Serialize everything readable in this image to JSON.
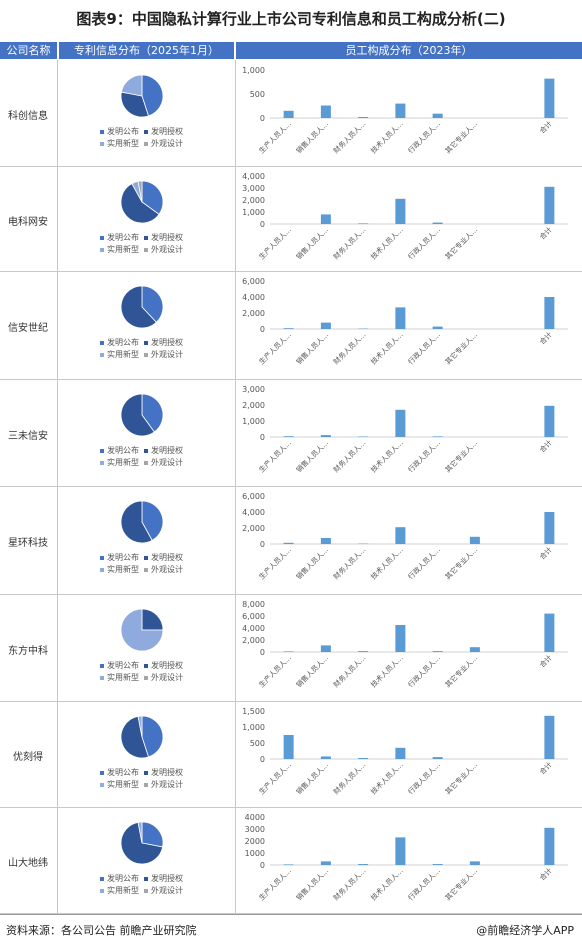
{
  "title": "图表9：中国隐私计算行业上市公司专利信息和员工构成分析(二)",
  "headers": {
    "company": "公司名称",
    "patent": "专利信息分布（2025年1月）",
    "staff": "员工构成分布（2023年）"
  },
  "footer": {
    "source": "资料来源：各公司公告 前瞻产业研究院",
    "brand": "@前瞻经济学人APP"
  },
  "colors": {
    "header": "#4472c4",
    "bar": "#5b9bd5",
    "pie_invention_pub": "#4472c4",
    "pie_invention_grant": "#2f5597",
    "pie_utility": "#8faadc",
    "pie_design": "#a5a5a5"
  },
  "chart_data": [
    {
      "type": "pie",
      "company": "科创信息",
      "categories": [
        "发明公布",
        "发明授权",
        "实用新型",
        "外观设计"
      ],
      "values": [
        45,
        33,
        22,
        0
      ]
    },
    {
      "type": "bar",
      "company": "科创信息",
      "categories": [
        "生产人员人…",
        "销售人员人…",
        "财务人员人…",
        "技术人员人…",
        "行政人员人…",
        "其它专业人…",
        "",
        "合计"
      ],
      "values": [
        150,
        260,
        20,
        300,
        90,
        0,
        0,
        820
      ],
      "yticks": [
        "1,000",
        "500",
        "0"
      ],
      "ylim": [
        0,
        1000
      ]
    },
    {
      "type": "pie",
      "company": "电科网安",
      "categories": [
        "发明公布",
        "发明授权",
        "实用新型",
        "外观设计"
      ],
      "values": [
        35,
        57,
        5,
        3
      ]
    },
    {
      "type": "bar",
      "company": "电科网安",
      "categories": [
        "生产人员人…",
        "销售人员人…",
        "财务人员人…",
        "技术人员人…",
        "行政人员人…",
        "其它专业人…",
        "",
        "合计"
      ],
      "values": [
        0,
        800,
        50,
        2100,
        120,
        0,
        0,
        3100
      ],
      "yticks": [
        "4,000",
        "3,000",
        "2,000",
        "1,000",
        "0"
      ],
      "ylim": [
        0,
        4000
      ]
    },
    {
      "type": "pie",
      "company": "信安世纪",
      "categories": [
        "发明公布",
        "发明授权",
        "实用新型",
        "外观设计"
      ],
      "values": [
        38,
        62,
        0,
        0
      ]
    },
    {
      "type": "bar",
      "company": "信安世纪",
      "categories": [
        "生产人员人…",
        "销售人员人…",
        "财务人员人…",
        "技术人员人…",
        "行政人员人…",
        "其它专业人…",
        "",
        "合计"
      ],
      "values": [
        100,
        800,
        50,
        2700,
        300,
        0,
        0,
        4000
      ],
      "yticks": [
        "6,000",
        "4,000",
        "2,000",
        "0"
      ],
      "ylim": [
        0,
        6000
      ]
    },
    {
      "type": "pie",
      "company": "三未信安",
      "categories": [
        "发明公布",
        "发明授权",
        "实用新型",
        "外观设计"
      ],
      "values": [
        40,
        60,
        0,
        0
      ]
    },
    {
      "type": "bar",
      "company": "三未信安",
      "categories": [
        "生产人员人…",
        "销售人员人…",
        "财务人员人…",
        "技术人员人…",
        "行政人员人…",
        "其它专业人…",
        "",
        "合计"
      ],
      "values": [
        50,
        120,
        30,
        1700,
        40,
        0,
        0,
        1950
      ],
      "yticks": [
        "3,000",
        "2,000",
        "1,000",
        "0"
      ],
      "ylim": [
        0,
        3000
      ]
    },
    {
      "type": "pie",
      "company": "星环科技",
      "categories": [
        "发明公布",
        "发明授权",
        "实用新型",
        "外观设计"
      ],
      "values": [
        42,
        58,
        0,
        0
      ]
    },
    {
      "type": "bar",
      "company": "星环科技",
      "categories": [
        "生产人员人…",
        "销售人员人…",
        "财务人员人…",
        "技术人员人…",
        "行政人员人…",
        "其它专业人…",
        "",
        "合计"
      ],
      "values": [
        150,
        750,
        50,
        2100,
        0,
        900,
        0,
        4000
      ],
      "yticks": [
        "6,000",
        "4,000",
        "2,000",
        "0"
      ],
      "ylim": [
        0,
        6000
      ]
    },
    {
      "type": "pie",
      "company": "东方中科",
      "categories": [
        "发明公布",
        "发明授权",
        "实用新型",
        "外观设计"
      ],
      "values": [
        0,
        25,
        75,
        0
      ]
    },
    {
      "type": "bar",
      "company": "东方中科",
      "categories": [
        "生产人员人…",
        "销售人员人…",
        "财务人员人…",
        "技术人员人…",
        "行政人员人…",
        "其它专业人…",
        "",
        "合计"
      ],
      "values": [
        100,
        1100,
        150,
        4500,
        150,
        800,
        0,
        6400
      ],
      "yticks": [
        "8,000",
        "6,000",
        "4,000",
        "2,000",
        "0"
      ],
      "ylim": [
        0,
        8000
      ]
    },
    {
      "type": "pie",
      "company": "优刻得",
      "categories": [
        "发明公布",
        "发明授权",
        "实用新型",
        "外观设计"
      ],
      "values": [
        45,
        52,
        3,
        0
      ]
    },
    {
      "type": "bar",
      "company": "优刻得",
      "categories": [
        "生产人员人…",
        "销售人员人…",
        "财务人员人…",
        "技术人员人…",
        "行政人员人…",
        "其它专业人…",
        "",
        "合计"
      ],
      "values": [
        750,
        80,
        30,
        350,
        60,
        0,
        0,
        1350
      ],
      "yticks": [
        "1,500",
        "1,000",
        "500",
        "0"
      ],
      "ylim": [
        0,
        1500
      ]
    },
    {
      "type": "pie",
      "company": "山大地纬",
      "categories": [
        "发明公布",
        "发明授权",
        "实用新型",
        "外观设计"
      ],
      "values": [
        28,
        69,
        3,
        0
      ]
    },
    {
      "type": "bar",
      "company": "山大地纬",
      "categories": [
        "生产人员人…",
        "销售人员人…",
        "财务人员人…",
        "技术人员人…",
        "行政人员人…",
        "其它专业人…",
        "",
        "合计"
      ],
      "values": [
        50,
        300,
        80,
        2300,
        80,
        300,
        0,
        3100
      ],
      "yticks": [
        "4000",
        "3000",
        "2000",
        "1000",
        "0"
      ],
      "ylim": [
        0,
        4000
      ]
    }
  ]
}
